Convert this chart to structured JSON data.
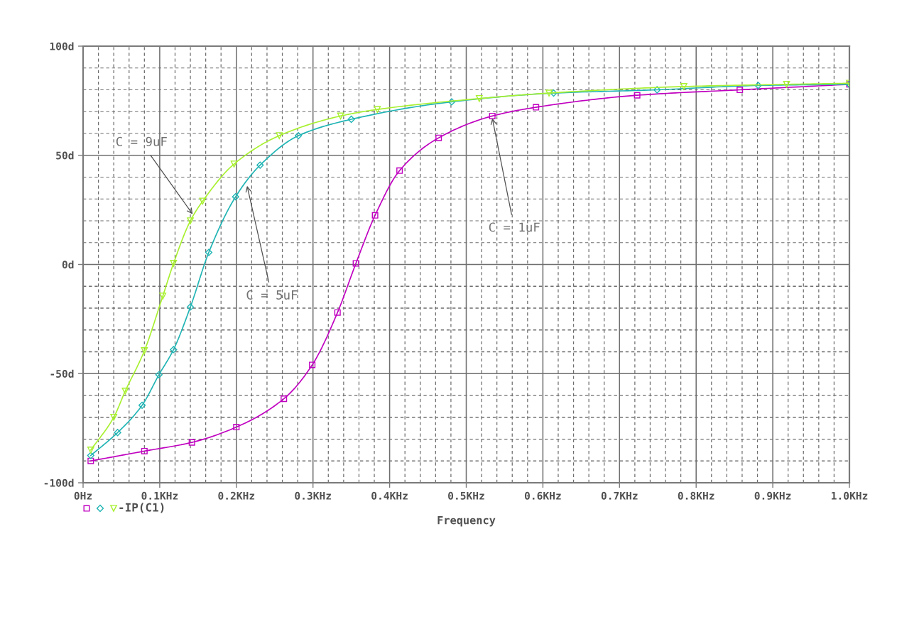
{
  "chart_data": {
    "type": "line",
    "xlabel": "Frequency",
    "grid": true,
    "line_style": "solid",
    "xlim": [
      0,
      1.0
    ],
    "ylim": [
      -100,
      100
    ],
    "xticks": [
      {
        "value": 0,
        "label": "0Hz"
      },
      {
        "value": 0.02,
        "label": null
      },
      {
        "value": 0.04,
        "label": null
      },
      {
        "value": 0.06,
        "label": null
      },
      {
        "value": 0.08,
        "label": null
      },
      {
        "value": 0.1,
        "label": "0.1KHz"
      },
      {
        "value": 0.12,
        "label": null
      },
      {
        "value": 0.14,
        "label": null
      },
      {
        "value": 0.16,
        "label": null
      },
      {
        "value": 0.18,
        "label": null
      },
      {
        "value": 0.2,
        "label": "0.2KHz"
      },
      {
        "value": 0.22,
        "label": null
      },
      {
        "value": 0.24,
        "label": null
      },
      {
        "value": 0.26,
        "label": null
      },
      {
        "value": 0.28,
        "label": null
      },
      {
        "value": 0.3,
        "label": "0.3KHz"
      },
      {
        "value": 0.32,
        "label": null
      },
      {
        "value": 0.34,
        "label": null
      },
      {
        "value": 0.36,
        "label": null
      },
      {
        "value": 0.38,
        "label": null
      },
      {
        "value": 0.4,
        "label": "0.4KHz"
      },
      {
        "value": 0.42,
        "label": null
      },
      {
        "value": 0.44,
        "label": null
      },
      {
        "value": 0.46,
        "label": null
      },
      {
        "value": 0.48,
        "label": null
      },
      {
        "value": 0.5,
        "label": "0.5KHz"
      },
      {
        "value": 0.52,
        "label": null
      },
      {
        "value": 0.54,
        "label": null
      },
      {
        "value": 0.56,
        "label": null
      },
      {
        "value": 0.58,
        "label": null
      },
      {
        "value": 0.6,
        "label": "0.6KHz"
      },
      {
        "value": 0.62,
        "label": null
      },
      {
        "value": 0.64,
        "label": null
      },
      {
        "value": 0.66,
        "label": null
      },
      {
        "value": 0.68,
        "label": null
      },
      {
        "value": 0.7,
        "label": "0.7KHz"
      },
      {
        "value": 0.72,
        "label": null
      },
      {
        "value": 0.74,
        "label": null
      },
      {
        "value": 0.76,
        "label": null
      },
      {
        "value": 0.78,
        "label": null
      },
      {
        "value": 0.8,
        "label": "0.8KHz"
      },
      {
        "value": 0.82,
        "label": null
      },
      {
        "value": 0.84,
        "label": null
      },
      {
        "value": 0.86,
        "label": null
      },
      {
        "value": 0.88,
        "label": null
      },
      {
        "value": 0.9,
        "label": "0.9KHz"
      },
      {
        "value": 0.92,
        "label": null
      },
      {
        "value": 0.94,
        "label": null
      },
      {
        "value": 0.96,
        "label": null
      },
      {
        "value": 0.98,
        "label": null
      },
      {
        "value": 1.0,
        "label": "1.0KHz"
      }
    ],
    "yticks": [
      {
        "value": -100,
        "label": "-100d"
      },
      {
        "value": -90,
        "label": null
      },
      {
        "value": -80,
        "label": null
      },
      {
        "value": -70,
        "label": null
      },
      {
        "value": -60,
        "label": null
      },
      {
        "value": -50,
        "label": "-50d"
      },
      {
        "value": -40,
        "label": null
      },
      {
        "value": -30,
        "label": null
      },
      {
        "value": -20,
        "label": null
      },
      {
        "value": -10,
        "label": null
      },
      {
        "value": 0,
        "label": "0d"
      },
      {
        "value": 10,
        "label": null
      },
      {
        "value": 20,
        "label": null
      },
      {
        "value": 30,
        "label": null
      },
      {
        "value": 40,
        "label": null
      },
      {
        "value": 50,
        "label": "50d"
      },
      {
        "value": 60,
        "label": null
      },
      {
        "value": 70,
        "label": null
      },
      {
        "value": 80,
        "label": null
      },
      {
        "value": 90,
        "label": null
      },
      {
        "value": 100,
        "label": "100d"
      }
    ],
    "series": [
      {
        "color": "#c000c0",
        "marker": "square",
        "x": [
          0.01,
          0.08,
          0.142,
          0.2,
          0.262,
          0.299,
          0.332,
          0.356,
          0.381,
          0.413,
          0.464,
          0.534,
          0.591,
          0.723,
          0.857,
          1.0
        ],
        "values": [
          -90,
          -85.5,
          -81.5,
          -74.5,
          -61.5,
          -46,
          -22,
          0.5,
          22.5,
          43,
          58,
          68,
          72,
          77.5,
          80,
          82.5
        ]
      },
      {
        "color": "#20b4b4",
        "marker": "diamond",
        "x": [
          0.01,
          0.045,
          0.077,
          0.099,
          0.118,
          0.14,
          0.164,
          0.199,
          0.231,
          0.281,
          0.35,
          0.481,
          0.614,
          0.749,
          0.881,
          1.0
        ],
        "values": [
          -87.5,
          -77,
          -64.5,
          -50.5,
          -39,
          -19.5,
          5.5,
          31,
          45.5,
          59,
          66.5,
          74.5,
          78.5,
          80,
          82,
          82.5
        ]
      },
      {
        "color": "#a8f030",
        "marker": "triangle",
        "x": [
          0.01,
          0.04,
          0.055,
          0.08,
          0.104,
          0.118,
          0.14,
          0.156,
          0.197,
          0.256,
          0.336,
          0.384,
          0.517,
          0.608,
          0.784,
          0.918,
          1.0
        ],
        "values": [
          -85,
          -70,
          -58,
          -39.5,
          -14.5,
          0.5,
          20,
          29,
          46,
          59,
          68,
          71,
          76,
          78.5,
          81.5,
          82.5,
          83
        ]
      }
    ],
    "annotations": [
      {
        "text": "C = 9uF",
        "x": 0.143,
        "y": 23
      },
      {
        "text": "C = 1uF",
        "x": 0.534,
        "y": 67
      },
      {
        "text": "C = 5uF",
        "x": 0.214,
        "y": 36
      },
      "-IP(C1)"
    ]
  }
}
